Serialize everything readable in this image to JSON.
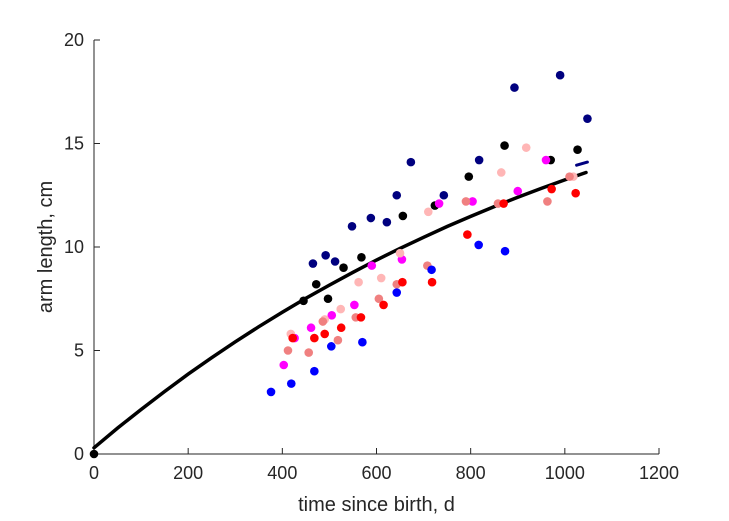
{
  "chart_data": {
    "type": "scatter",
    "xlabel": "time since birth, d",
    "ylabel": "arm length, cm",
    "xlim": [
      0,
      1200
    ],
    "ylim": [
      0,
      20
    ],
    "xticks": [
      0,
      200,
      400,
      600,
      800,
      1000,
      1200
    ],
    "yticks": [
      0,
      5,
      10,
      15,
      20
    ],
    "grid": false,
    "series": [
      {
        "color": "#00007f",
        "points": [
          [
            465,
            9.2
          ],
          [
            492,
            9.6
          ],
          [
            512,
            9.3
          ],
          [
            548,
            11.0
          ],
          [
            588,
            11.4
          ],
          [
            622,
            11.2
          ],
          [
            643,
            12.5
          ],
          [
            673,
            14.1
          ],
          [
            743,
            12.5
          ],
          [
            818,
            14.2
          ],
          [
            893,
            17.7
          ],
          [
            990,
            18.3
          ],
          [
            1048,
            16.2
          ]
        ]
      },
      {
        "color": "#000000",
        "points": [
          [
            0,
            0.0
          ],
          [
            445,
            7.4
          ],
          [
            472,
            8.2
          ],
          [
            497,
            7.5
          ],
          [
            530,
            9.0
          ],
          [
            568,
            9.5
          ],
          [
            656,
            11.5
          ],
          [
            724,
            12.0
          ],
          [
            796,
            13.4
          ],
          [
            872,
            14.9
          ],
          [
            970,
            14.2
          ],
          [
            1027,
            14.7
          ]
        ]
      },
      {
        "color": "#ff00ff",
        "points": [
          [
            403,
            4.3
          ],
          [
            426,
            5.6
          ],
          [
            461,
            6.1
          ],
          [
            505,
            6.7
          ],
          [
            553,
            7.2
          ],
          [
            590,
            9.1
          ],
          [
            654,
            9.4
          ],
          [
            733,
            12.1
          ],
          [
            804,
            12.2
          ],
          [
            900,
            12.7
          ],
          [
            960,
            14.2
          ]
        ]
      },
      {
        "color": "#ffb6b6",
        "points": [
          [
            418,
            5.8
          ],
          [
            490,
            6.5
          ],
          [
            524,
            7.0
          ],
          [
            562,
            8.3
          ],
          [
            610,
            8.5
          ],
          [
            650,
            9.7
          ],
          [
            710,
            11.7
          ],
          [
            865,
            13.6
          ],
          [
            918,
            14.8
          ],
          [
            1018,
            13.4
          ]
        ]
      },
      {
        "color": "#f08080",
        "points": [
          [
            412,
            5.0
          ],
          [
            456,
            4.9
          ],
          [
            486,
            6.4
          ],
          [
            518,
            5.5
          ],
          [
            556,
            6.6
          ],
          [
            605,
            7.5
          ],
          [
            643,
            8.2
          ],
          [
            708,
            9.1
          ],
          [
            790,
            12.2
          ],
          [
            858,
            12.1
          ],
          [
            963,
            12.2
          ],
          [
            1010,
            13.4
          ]
        ]
      },
      {
        "color": "#ff0000",
        "points": [
          [
            422,
            5.6
          ],
          [
            468,
            5.6
          ],
          [
            490,
            5.8
          ],
          [
            525,
            6.1
          ],
          [
            567,
            6.6
          ],
          [
            615,
            7.2
          ],
          [
            655,
            8.3
          ],
          [
            718,
            8.3
          ],
          [
            793,
            10.6
          ],
          [
            870,
            12.1
          ],
          [
            972,
            12.8
          ],
          [
            1023,
            12.6
          ]
        ]
      },
      {
        "color": "#0000ff",
        "points": [
          [
            376,
            3.0
          ],
          [
            419,
            3.4
          ],
          [
            468,
            4.0
          ],
          [
            504,
            5.2
          ],
          [
            570,
            5.4
          ],
          [
            643,
            7.8
          ],
          [
            717,
            8.9
          ],
          [
            817,
            10.1
          ],
          [
            873,
            9.8
          ]
        ]
      }
    ],
    "fit_curve": {
      "color": "#000000",
      "x": [
        0,
        50,
        100,
        150,
        200,
        250,
        300,
        350,
        400,
        450,
        500,
        550,
        600,
        650,
        700,
        750,
        800,
        850,
        900,
        950,
        1000,
        1045
      ],
      "y": [
        0.3,
        1.25,
        2.15,
        3.02,
        3.86,
        4.65,
        5.42,
        6.15,
        6.85,
        7.52,
        8.16,
        8.78,
        9.37,
        9.93,
        10.47,
        10.99,
        11.48,
        11.95,
        12.4,
        12.83,
        13.24,
        13.6
      ]
    },
    "fit_tail": {
      "color": "#00007f",
      "x": [
        1025,
        1048
      ],
      "y": [
        13.95,
        14.1
      ]
    }
  }
}
